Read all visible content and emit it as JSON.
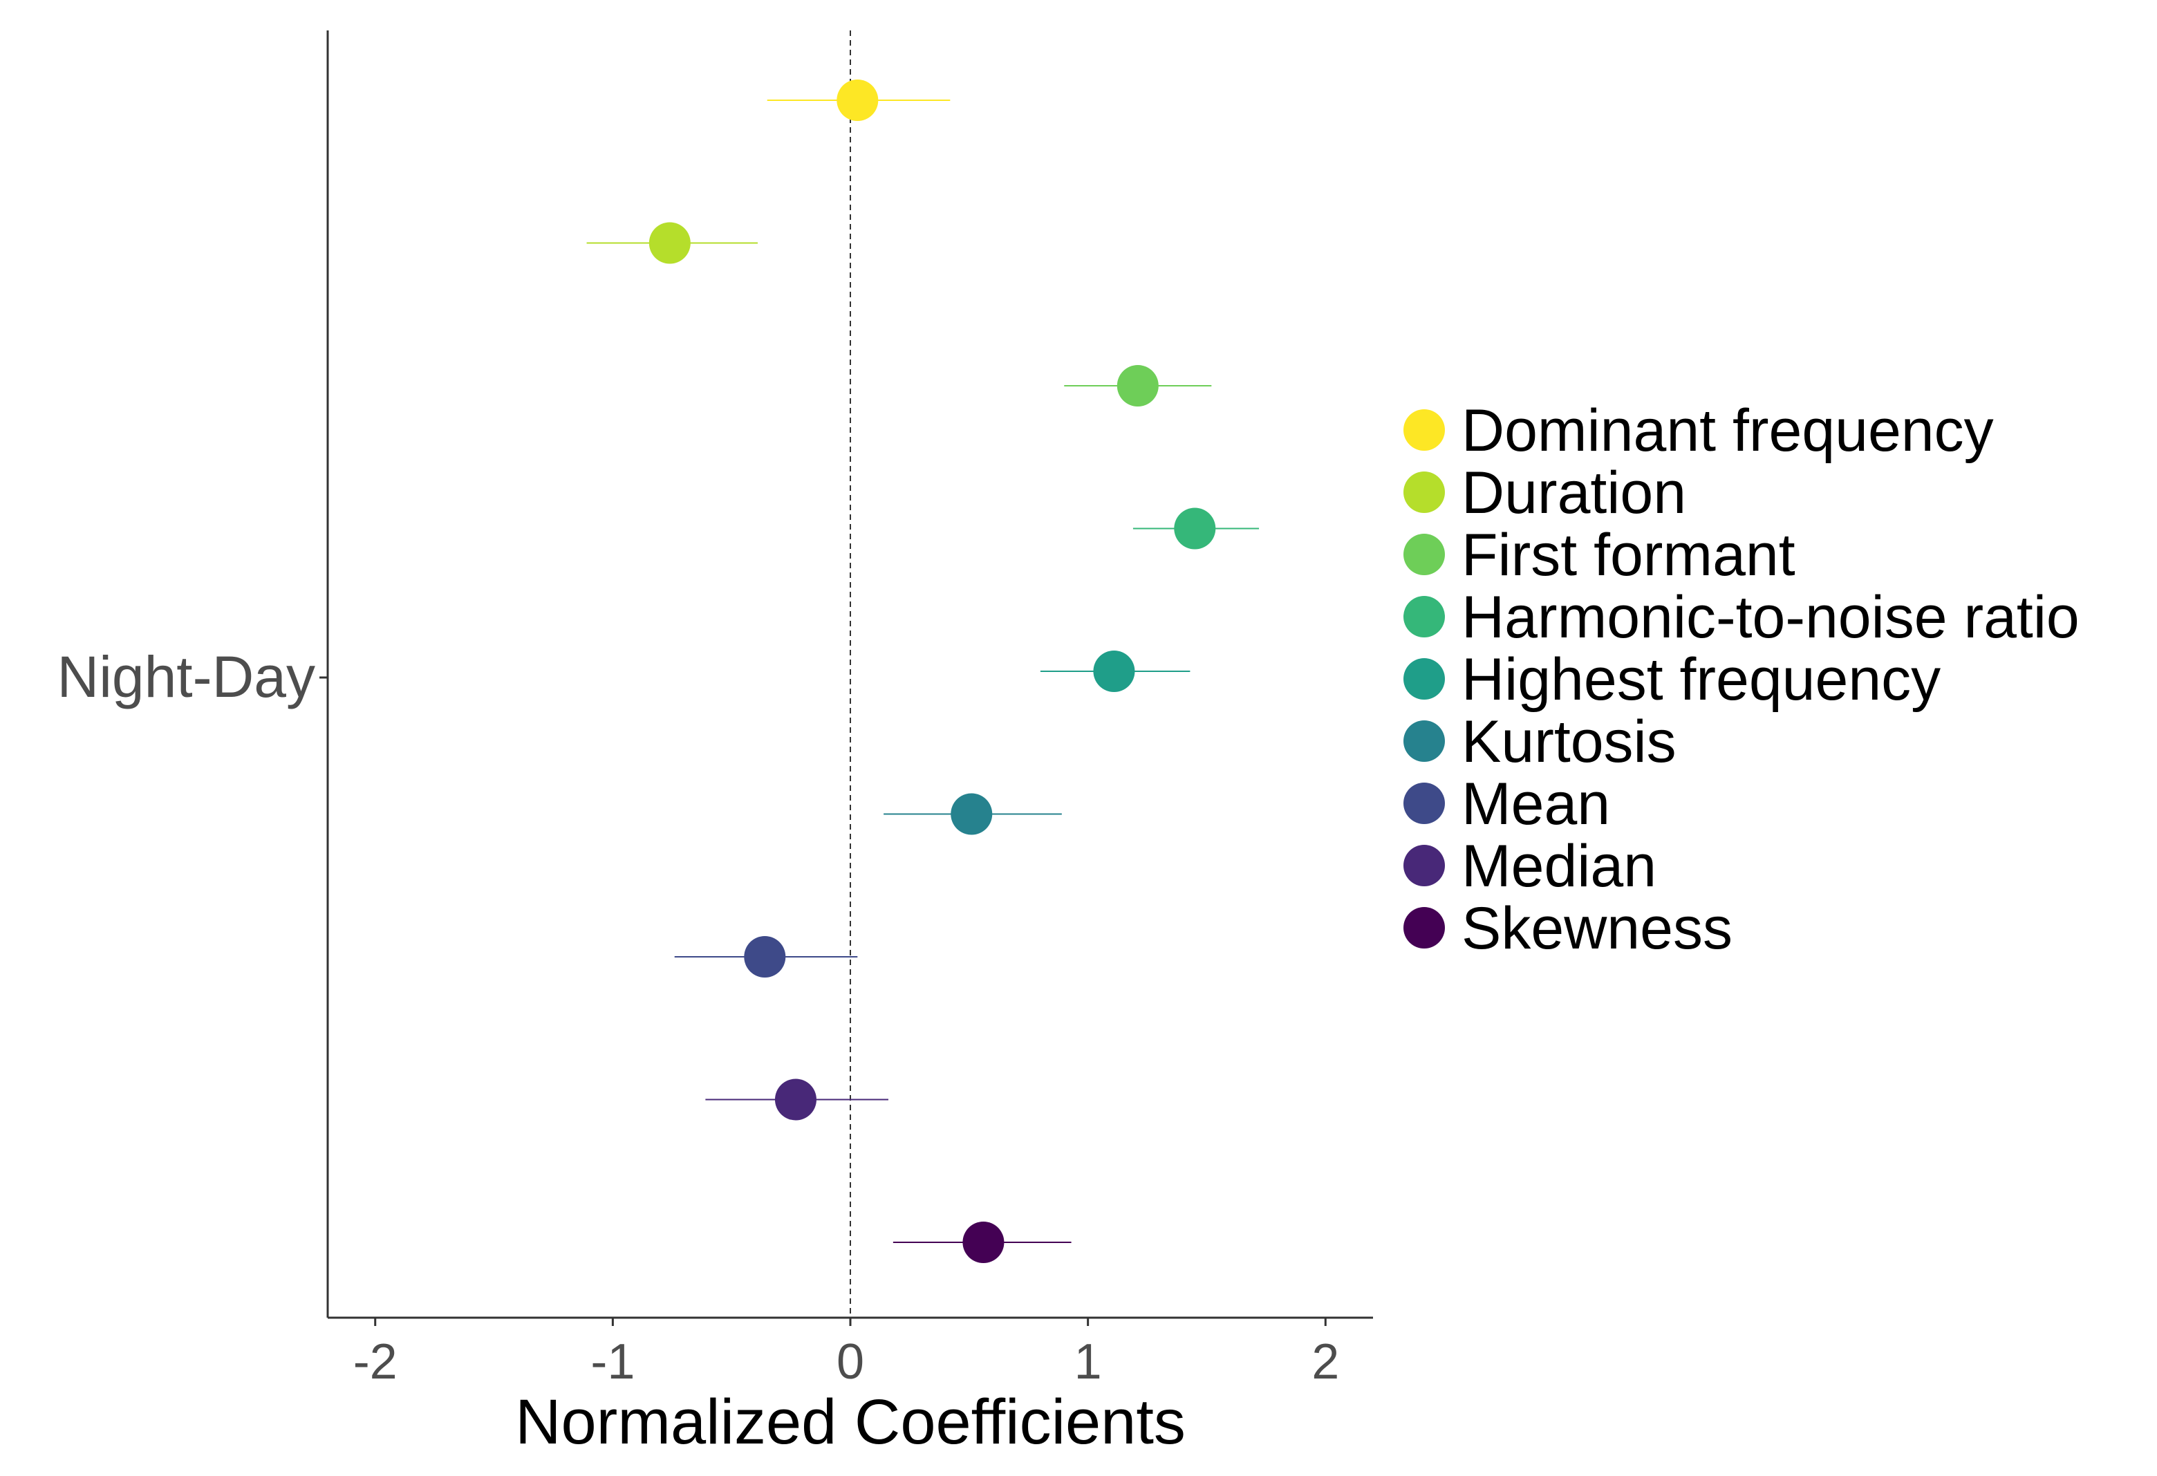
{
  "chart_data": {
    "type": "scatter",
    "subtype": "coefficient-plot",
    "title": "",
    "xlabel": "Normalized Coefficients",
    "ylabel": "",
    "y_category": "Night-Day",
    "xlim": [
      -2.2,
      2.2
    ],
    "x_ticks": [
      -2,
      -1,
      0,
      1,
      2
    ],
    "x_tick_labels": [
      "-2",
      "-1",
      "0",
      "1",
      "2"
    ],
    "reference_line_x": 0,
    "grid": false,
    "legend_position": "right",
    "series": [
      {
        "name": "Dominant frequency",
        "color": "#FDE725",
        "estimate": 0.03,
        "lower": -0.35,
        "upper": 0.42
      },
      {
        "name": "Duration",
        "color": "#B5DE2B",
        "estimate": -0.76,
        "lower": -1.11,
        "upper": -0.39
      },
      {
        "name": "First formant",
        "color": "#6ECE58",
        "estimate": 1.21,
        "lower": 0.9,
        "upper": 1.52
      },
      {
        "name": "Harmonic-to-noise ratio",
        "color": "#35B779",
        "estimate": 1.45,
        "lower": 1.19,
        "upper": 1.72
      },
      {
        "name": "Highest frequency",
        "color": "#1F9E89",
        "estimate": 1.11,
        "lower": 0.8,
        "upper": 1.43
      },
      {
        "name": "Kurtosis",
        "color": "#26828E",
        "estimate": 0.51,
        "lower": 0.14,
        "upper": 0.89
      },
      {
        "name": "Mean",
        "color": "#3E4A89",
        "estimate": -0.36,
        "lower": -0.74,
        "upper": 0.03
      },
      {
        "name": "Median",
        "color": "#482878",
        "estimate": -0.23,
        "lower": -0.61,
        "upper": 0.16
      },
      {
        "name": "Skewness",
        "color": "#440154",
        "estimate": 0.56,
        "lower": 0.18,
        "upper": 0.93
      }
    ]
  }
}
